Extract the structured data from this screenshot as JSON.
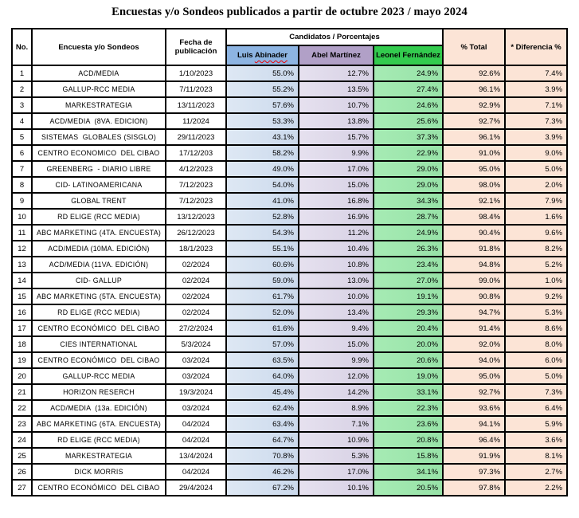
{
  "title": "Encuestas y/o Sondeos publicados a partir de octubre 2023 / mayo 2024",
  "table": {
    "headers": {
      "no": "No.",
      "encuesta": "Encuesta y/o Sondeos",
      "fecha": "Fecha de publicación",
      "candidatos_group": "Candidatos / Porcentajes",
      "total": "% Total",
      "diferencia": "* Diferencia %"
    },
    "candidates": [
      {
        "label": "Luis Abinader",
        "misspelled_word": "Abinader"
      },
      {
        "label": "Abel Martínez"
      },
      {
        "label": "Leonel Fernández"
      }
    ]
  },
  "colors": {
    "header-blue": "#8DB4E2",
    "header-purple": "#B1A0C7",
    "header-green": "#33CB4E",
    "cell-blue": "#DEE8F4",
    "cell-blue-dark": "#CBD9EC",
    "cell-purple": "#E6E1EF",
    "cell-purple-dark": "#D6D0E4",
    "cell-green": "#A6EBB4",
    "cell-green-dark": "#97E2A7",
    "cell-peach": "#FCE4D6",
    "border": "#000000",
    "wavy-red": "#EE0000"
  },
  "chart_data": {
    "type": "table",
    "title": "Encuestas y/o Sondeos publicados a partir de octubre 2023 / mayo 2024",
    "columns": [
      "No.",
      "Encuesta y/o Sondeos",
      "Fecha de publicación",
      "Luis Abinader",
      "Abel Martínez",
      "Leonel Fernández",
      "% Total",
      "* Diferencia %"
    ],
    "rows": [
      [
        1,
        "ACD/MEDIA",
        "1/10/2023",
        "55.0%",
        "12.7%",
        "24.9%",
        "92.6%",
        "7.4%"
      ],
      [
        2,
        "GALLUP-RCC MEDIA",
        "7/11/2023",
        "55.2%",
        "13.5%",
        "27.4%",
        "96.1%",
        "3.9%"
      ],
      [
        3,
        "MARKESTRATEGIA",
        "13/11/2023",
        "57.6%",
        "10.7%",
        "24.6%",
        "92.9%",
        "7.1%"
      ],
      [
        4,
        "ACD/MEDIA  (8VA. EDICION)",
        "11/2024",
        "53.3%",
        "13.8%",
        "25.6%",
        "92.7%",
        "7.3%"
      ],
      [
        5,
        "SISTEMAS  GLOBALES (SISGLO)",
        "29/11/2023",
        "43.1%",
        "15.7%",
        "37.3%",
        "96.1%",
        "3.9%"
      ],
      [
        6,
        "CENTRO ECONOMICO  DEL CIBAO",
        "17/12/203",
        "58.2%",
        "9.9%",
        "22.9%",
        "91.0%",
        "9.0%"
      ],
      [
        7,
        "GREENBERG  - DIARIO LIBRE",
        "4/12/2023",
        "49.0%",
        "17.0%",
        "29.0%",
        "95.0%",
        "5.0%"
      ],
      [
        8,
        "CID- LATINOAMERICANA",
        "7/12/2023",
        "54.0%",
        "15.0%",
        "29.0%",
        "98.0%",
        "2.0%"
      ],
      [
        9,
        "GLOBAL TRENT",
        "7/12/2023",
        "41.0%",
        "16.8%",
        "34.3%",
        "92.1%",
        "7.9%"
      ],
      [
        10,
        "RD ELIGE (RCC MEDIA)",
        "13/12/2023",
        "52.8%",
        "16.9%",
        "28.7%",
        "98.4%",
        "1.6%"
      ],
      [
        11,
        "ABC MARKETING (4TA. ENCUESTA)",
        "26/12/2023",
        "54.3%",
        "11.2%",
        "24.9%",
        "90.4%",
        "9.6%"
      ],
      [
        12,
        "ACD/MEDIA (10MA. EDICIÓN)",
        "18/1/2023",
        "55.1%",
        "10.4%",
        "26.3%",
        "91.8%",
        "8.2%"
      ],
      [
        13,
        "ACD/MEDIA (11VA. EDICIÓN)",
        "02/2024",
        "60.6%",
        "10.8%",
        "23.4%",
        "94.8%",
        "5.2%"
      ],
      [
        14,
        "CID- GALLUP",
        "02/2024",
        "59.0%",
        "13.0%",
        "27.0%",
        "99.0%",
        "1.0%"
      ],
      [
        15,
        "ABC MARKETING (5TA. ENCUESTA)",
        "02/2024",
        "61.7%",
        "10.0%",
        "19.1%",
        "90.8%",
        "9.2%"
      ],
      [
        16,
        "RD ELIGE (RCC MEDIA)",
        "02/2024",
        "52.0%",
        "13.4%",
        "29.3%",
        "94.7%",
        "5.3%"
      ],
      [
        17,
        "CENTRO ECONÓMICO  DEL CIBAO",
        "27/2/2024",
        "61.6%",
        "9.4%",
        "20.4%",
        "91.4%",
        "8.6%"
      ],
      [
        18,
        "CIES INTERNATIONAL",
        "5/3/2024",
        "57.0%",
        "15.0%",
        "20.0%",
        "92.0%",
        "8.0%"
      ],
      [
        19,
        "CENTRO ECONÓMICO  DEL CIBAO",
        "03/2024",
        "63.5%",
        "9.9%",
        "20.6%",
        "94.0%",
        "6.0%"
      ],
      [
        20,
        "GALLUP-RCC MEDIA",
        "03/2024",
        "64.0%",
        "12.0%",
        "19.0%",
        "95.0%",
        "5.0%"
      ],
      [
        21,
        "HORIZON RESERCH",
        "19/3/2024",
        "45.4%",
        "14.2%",
        "33.1%",
        "92.7%",
        "7.3%"
      ],
      [
        22,
        "ACD/MEDIA  (13a. EDICIÓN)",
        "03/2024",
        "62.4%",
        "8.9%",
        "22.3%",
        "93.6%",
        "6.4%"
      ],
      [
        23,
        "ABC MARKETING (6TA. ENCUESTA)",
        "04/2024",
        "63.4%",
        "7.1%",
        "23.6%",
        "94.1%",
        "5.9%"
      ],
      [
        24,
        "RD ELIGE (RCC MEDIA)",
        "04/2024",
        "64.7%",
        "10.9%",
        "20.8%",
        "96.4%",
        "3.6%"
      ],
      [
        25,
        "MARKESTRATEGIA",
        "13/4/2024",
        "70.8%",
        "5.3%",
        "15.8%",
        "91.9%",
        "8.1%"
      ],
      [
        26,
        "DICK MORRIS",
        "04/2024",
        "46.2%",
        "17.0%",
        "34.1%",
        "97.3%",
        "2.7%"
      ],
      [
        27,
        "CENTRO ECONÓMICO  DEL CIBAO",
        "29/4/2024",
        "67.2%",
        "10.1%",
        "20.5%",
        "97.8%",
        "2.2%"
      ]
    ]
  }
}
